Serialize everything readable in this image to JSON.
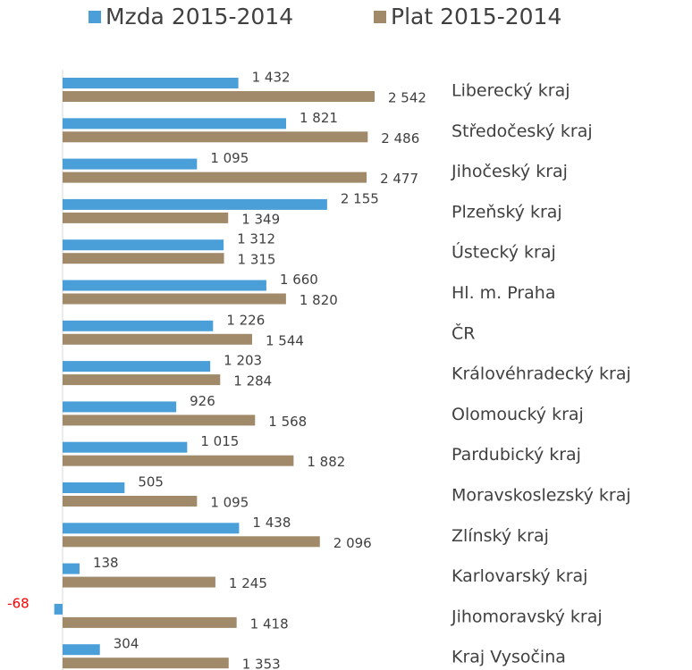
{
  "chart_data": {
    "type": "bar",
    "orientation": "horizontal",
    "categories": [
      "Liberecký kraj",
      "Středočeský kraj",
      "Jihočeský kraj",
      "Plzeňský kraj",
      "Ústecký kraj",
      "Hl. m. Praha",
      "ČR",
      "Královéhradecký kraj",
      "Olomoucký kraj",
      "Pardubický kraj",
      "Moravskoslezský kraj",
      "Zlínský kraj",
      "Karlovarský kraj",
      "Jihomoravský kraj",
      "Kraj Vysočina"
    ],
    "series": [
      {
        "name": "Mzda 2015-2014",
        "color": "#4a9fd8",
        "values": [
          1432,
          1821,
          1095,
          2155,
          1312,
          1660,
          1226,
          1203,
          926,
          1015,
          505,
          1438,
          138,
          -68,
          304
        ],
        "value_labels": [
          "1 432",
          "1 821",
          "1 095",
          "2 155",
          "1 312",
          "1 660",
          "1 226",
          "1 203",
          "926",
          "1 015",
          "505",
          "1 438",
          "138",
          "-68",
          "304"
        ]
      },
      {
        "name": "Plat 2015-2014",
        "color": "#a08a6a",
        "values": [
          2542,
          2486,
          2477,
          1349,
          1315,
          1820,
          1544,
          1284,
          1568,
          1882,
          1095,
          2096,
          1245,
          1418,
          1353
        ],
        "value_labels": [
          "2 542",
          "2 486",
          "2 477",
          "1 349",
          "1 315",
          "1 820",
          "1 544",
          "1 284",
          "1 568",
          "1 882",
          "1 095",
          "2 096",
          "1 245",
          "1 418",
          "1 353"
        ]
      }
    ],
    "legend": "top",
    "negative_label_color": "#ff0000"
  }
}
